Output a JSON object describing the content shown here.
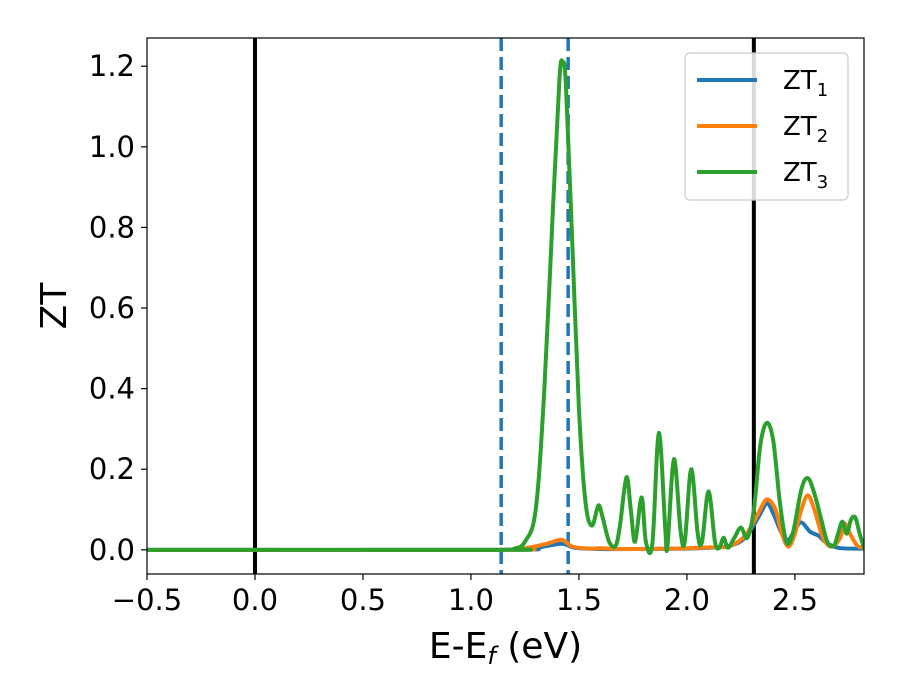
{
  "chart_data": {
    "type": "line",
    "title": "",
    "xlabel": "E-E",
    "xlabel_sub": "f",
    "xlabel_unit": " (eV)",
    "ylabel": "ZT",
    "xlim": [
      -0.5,
      2.82
    ],
    "ylim": [
      -0.06,
      1.27
    ],
    "grid": false,
    "legend_position": "top-right",
    "xticks": [
      {
        "value": -0.5,
        "label": "−0.5"
      },
      {
        "value": 0.0,
        "label": "0.0"
      },
      {
        "value": 0.5,
        "label": "0.5"
      },
      {
        "value": 1.0,
        "label": "1.0"
      },
      {
        "value": 1.5,
        "label": "1.5"
      },
      {
        "value": 2.0,
        "label": "2.0"
      },
      {
        "value": 2.5,
        "label": "2.5"
      }
    ],
    "yticks": [
      {
        "value": 0.0,
        "label": "0.0"
      },
      {
        "value": 0.2,
        "label": "0.2"
      },
      {
        "value": 0.4,
        "label": "0.4"
      },
      {
        "value": 0.6,
        "label": "0.6"
      },
      {
        "value": 0.8,
        "label": "0.8"
      },
      {
        "value": 1.0,
        "label": "1.0"
      },
      {
        "value": 1.2,
        "label": "1.2"
      }
    ],
    "vlines": [
      {
        "x": 0.0,
        "style": "solid",
        "color": "#000000"
      },
      {
        "x": 2.31,
        "style": "solid",
        "color": "#000000"
      },
      {
        "x": 1.14,
        "style": "dashed",
        "color": "#1f77b4"
      },
      {
        "x": 1.45,
        "style": "dashed",
        "color": "#1f77b4"
      }
    ],
    "series": [
      {
        "name": "ZT",
        "sub": "1",
        "color": "#1f77b4",
        "points": [
          [
            -0.5,
            0
          ],
          [
            1.14,
            0
          ],
          [
            1.3,
            0.005
          ],
          [
            1.42,
            0.015
          ],
          [
            1.48,
            0.005
          ],
          [
            1.6,
            0.002
          ],
          [
            1.8,
            0.002
          ],
          [
            2.0,
            0.003
          ],
          [
            2.1,
            0.005
          ],
          [
            2.2,
            0.01
          ],
          [
            2.27,
            0.03
          ],
          [
            2.33,
            0.08
          ],
          [
            2.37,
            0.115
          ],
          [
            2.4,
            0.09
          ],
          [
            2.44,
            0.04
          ],
          [
            2.47,
            0.025
          ],
          [
            2.5,
            0.05
          ],
          [
            2.53,
            0.068
          ],
          [
            2.57,
            0.045
          ],
          [
            2.61,
            0.035
          ],
          [
            2.64,
            0.02
          ],
          [
            2.7,
            0.005
          ],
          [
            2.82,
            0.003
          ]
        ]
      },
      {
        "name": "ZT",
        "sub": "2",
        "color": "#ff7f0e",
        "points": [
          [
            -0.5,
            0
          ],
          [
            1.14,
            0
          ],
          [
            1.25,
            0.004
          ],
          [
            1.35,
            0.015
          ],
          [
            1.42,
            0.025
          ],
          [
            1.47,
            0.008
          ],
          [
            1.55,
            0.003
          ],
          [
            1.6,
            0.004
          ],
          [
            1.7,
            0.002
          ],
          [
            1.9,
            0.003
          ],
          [
            2.0,
            0.004
          ],
          [
            2.1,
            0.006
          ],
          [
            2.2,
            0.01
          ],
          [
            2.27,
            0.035
          ],
          [
            2.33,
            0.09
          ],
          [
            2.37,
            0.125
          ],
          [
            2.41,
            0.1
          ],
          [
            2.44,
            0.04
          ],
          [
            2.47,
            0.008
          ],
          [
            2.5,
            0.04
          ],
          [
            2.53,
            0.1
          ],
          [
            2.56,
            0.135
          ],
          [
            2.59,
            0.1
          ],
          [
            2.63,
            0.03
          ],
          [
            2.67,
            0.008
          ],
          [
            2.71,
            0.03
          ],
          [
            2.73,
            0.065
          ],
          [
            2.76,
            0.035
          ],
          [
            2.79,
            0.01
          ],
          [
            2.82,
            0.005
          ]
        ]
      },
      {
        "name": "ZT",
        "sub": "3",
        "color": "#2ca02c",
        "points": [
          [
            -0.5,
            0
          ],
          [
            1.14,
            0
          ],
          [
            1.2,
            0.003
          ],
          [
            1.25,
            0.02
          ],
          [
            1.3,
            0.1
          ],
          [
            1.34,
            0.4
          ],
          [
            1.38,
            0.85
          ],
          [
            1.41,
            1.17
          ],
          [
            1.425,
            1.21
          ],
          [
            1.44,
            1.15
          ],
          [
            1.47,
            0.75
          ],
          [
            1.5,
            0.35
          ],
          [
            1.53,
            0.12
          ],
          [
            1.56,
            0.06
          ],
          [
            1.59,
            0.11
          ],
          [
            1.61,
            0.08
          ],
          [
            1.64,
            0.02
          ],
          [
            1.67,
            0.01
          ],
          [
            1.69,
            0.06
          ],
          [
            1.72,
            0.18
          ],
          [
            1.74,
            0.1
          ],
          [
            1.76,
            0.02
          ],
          [
            1.79,
            0.13
          ],
          [
            1.81,
            0.02
          ],
          [
            1.84,
            0.015
          ],
          [
            1.87,
            0.29
          ],
          [
            1.9,
            0.05
          ],
          [
            1.91,
            0.01
          ],
          [
            1.94,
            0.225
          ],
          [
            1.97,
            0.05
          ],
          [
            1.99,
            0.02
          ],
          [
            2.02,
            0.2
          ],
          [
            2.05,
            0.04
          ],
          [
            2.07,
            0.02
          ],
          [
            2.1,
            0.145
          ],
          [
            2.13,
            0.02
          ],
          [
            2.15,
            0.005
          ],
          [
            2.17,
            0.03
          ],
          [
            2.19,
            0.005
          ],
          [
            2.22,
            0.03
          ],
          [
            2.25,
            0.055
          ],
          [
            2.28,
            0.03
          ],
          [
            2.31,
            0.1
          ],
          [
            2.34,
            0.26
          ],
          [
            2.37,
            0.315
          ],
          [
            2.4,
            0.27
          ],
          [
            2.43,
            0.12
          ],
          [
            2.46,
            0.02
          ],
          [
            2.49,
            0.04
          ],
          [
            2.53,
            0.15
          ],
          [
            2.56,
            0.178
          ],
          [
            2.59,
            0.14
          ],
          [
            2.62,
            0.08
          ],
          [
            2.65,
            0.02
          ],
          [
            2.68,
            0.01
          ],
          [
            2.7,
            0.04
          ],
          [
            2.72,
            0.07
          ],
          [
            2.74,
            0.04
          ],
          [
            2.76,
            0.075
          ],
          [
            2.78,
            0.08
          ],
          [
            2.8,
            0.04
          ],
          [
            2.82,
            0.005
          ]
        ]
      }
    ]
  }
}
